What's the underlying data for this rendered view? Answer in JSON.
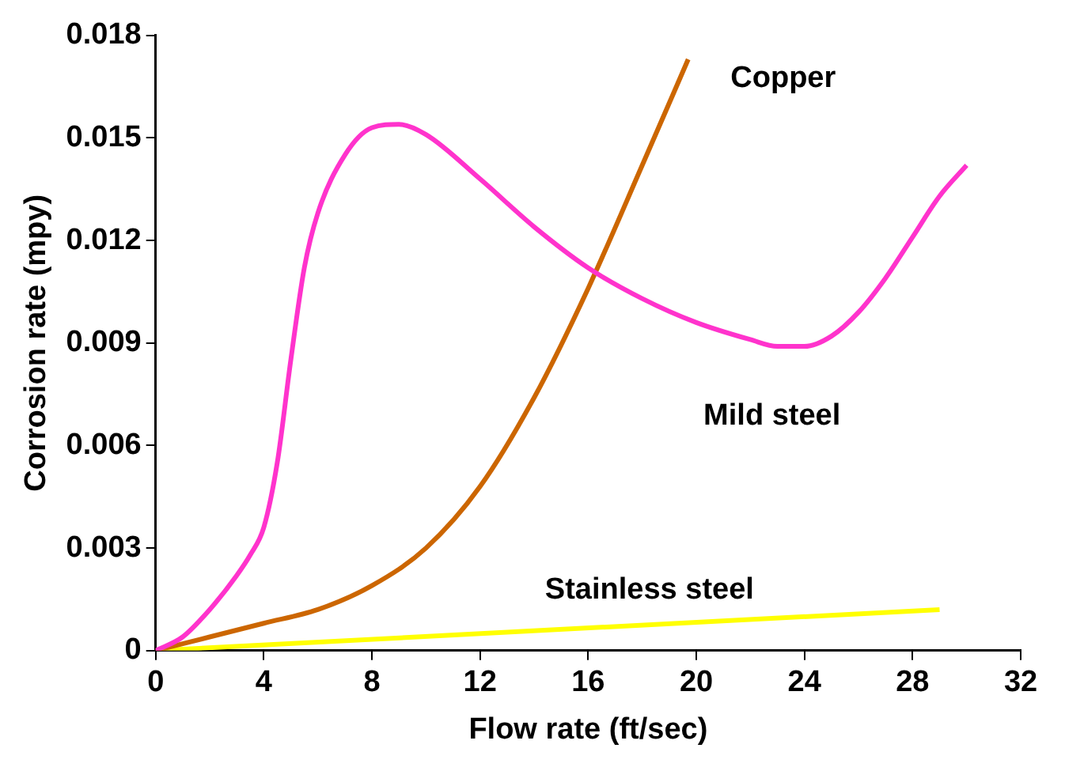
{
  "chart_data": {
    "type": "line",
    "xlabel": "Flow rate (ft/sec)",
    "ylabel": "Corrosion rate (mpy)",
    "xlim": [
      0,
      32
    ],
    "xticks": [
      0,
      4,
      8,
      12,
      16,
      20,
      24,
      28,
      32
    ],
    "ylim": [
      0,
      0.018
    ],
    "yticks": [
      0,
      0.003,
      0.006,
      0.009,
      0.012,
      0.015,
      0.018
    ],
    "grid": false,
    "legend": false,
    "marker": "none",
    "line_style": "solid",
    "series": [
      {
        "name": "Mild steel",
        "color": "#ff33cc",
        "x": [
          0,
          1,
          2,
          3,
          3.5,
          4,
          4.5,
          5,
          5.5,
          6,
          7,
          8,
          9,
          10,
          12,
          14,
          16,
          18,
          20,
          22,
          23,
          24,
          25,
          26,
          27,
          28,
          29,
          30
        ],
        "values": [
          0,
          0.0004,
          0.0012,
          0.0022,
          0.0028,
          0.0036,
          0.0055,
          0.0085,
          0.0112,
          0.0128,
          0.0145,
          0.0153,
          0.0154,
          0.0151,
          0.0138,
          0.0124,
          0.0112,
          0.0103,
          0.0096,
          0.0091,
          0.0089,
          0.0089,
          0.0092,
          0.0099,
          0.0109,
          0.0121,
          0.0133,
          0.0142
        ]
      },
      {
        "name": "Copper",
        "color": "#cc6600",
        "x": [
          0,
          2,
          4,
          6,
          8,
          10,
          12,
          14,
          16,
          18,
          19.7
        ],
        "values": [
          0,
          0.0004,
          0.0008,
          0.0012,
          0.0019,
          0.003,
          0.0048,
          0.0074,
          0.0106,
          0.0142,
          0.0173
        ]
      },
      {
        "name": "Stainless steel",
        "color": "#ffff00",
        "x": [
          0,
          29
        ],
        "values": [
          0,
          0.0012
        ]
      }
    ]
  }
}
